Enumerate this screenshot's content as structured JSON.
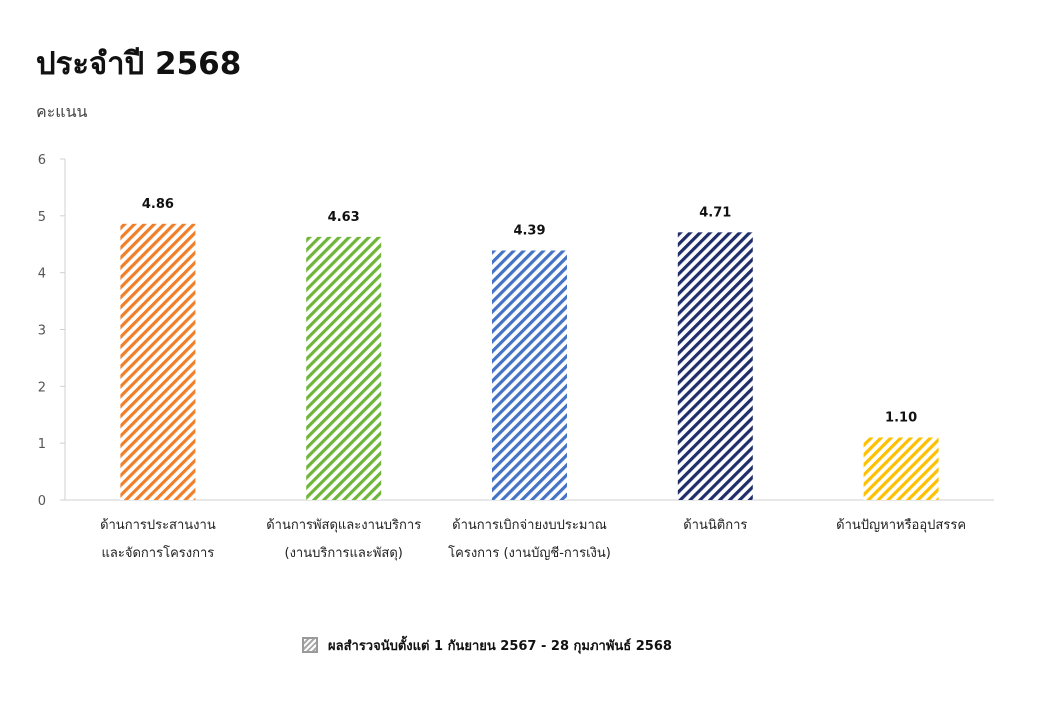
{
  "chart_data": {
    "type": "bar",
    "title": "ประจำปี 2568",
    "ylabel": "คะแนน",
    "xlabel": "",
    "ylim": [
      0,
      6
    ],
    "yticks": [
      "0",
      "1",
      "2",
      "3",
      "4",
      "5",
      "6"
    ],
    "grid": false,
    "legend_position": "bottom",
    "categories": [
      [
        "ด้านการประสานงาน",
        "และจัดการโครงการ"
      ],
      [
        "ด้านการพัสดุและงานบริการ",
        "(งานบริการและพัสดุ)"
      ],
      [
        "ด้านการเบิกจ่ายงบประมาณ",
        "โครงการ (งานบัญชี-การเงิน)"
      ],
      [
        "ด้านนิติการ"
      ],
      [
        "ด้านปัญหาหรืออุปสรรค"
      ]
    ],
    "series": [
      {
        "name": "ผลสำรวจนับตั้งแต่ 1 กันยายน 2567 - 28 กุมภาพันธ์ 2568",
        "values": [
          4.86,
          4.63,
          4.39,
          4.71,
          1.1
        ],
        "value_labels": [
          "4.86",
          "4.63",
          "4.39",
          "4.71",
          "1.10"
        ],
        "colors": [
          "#F07F2A",
          "#6FB53A",
          "#4472C4",
          "#1F2D6B",
          "#FFC000"
        ]
      }
    ]
  }
}
